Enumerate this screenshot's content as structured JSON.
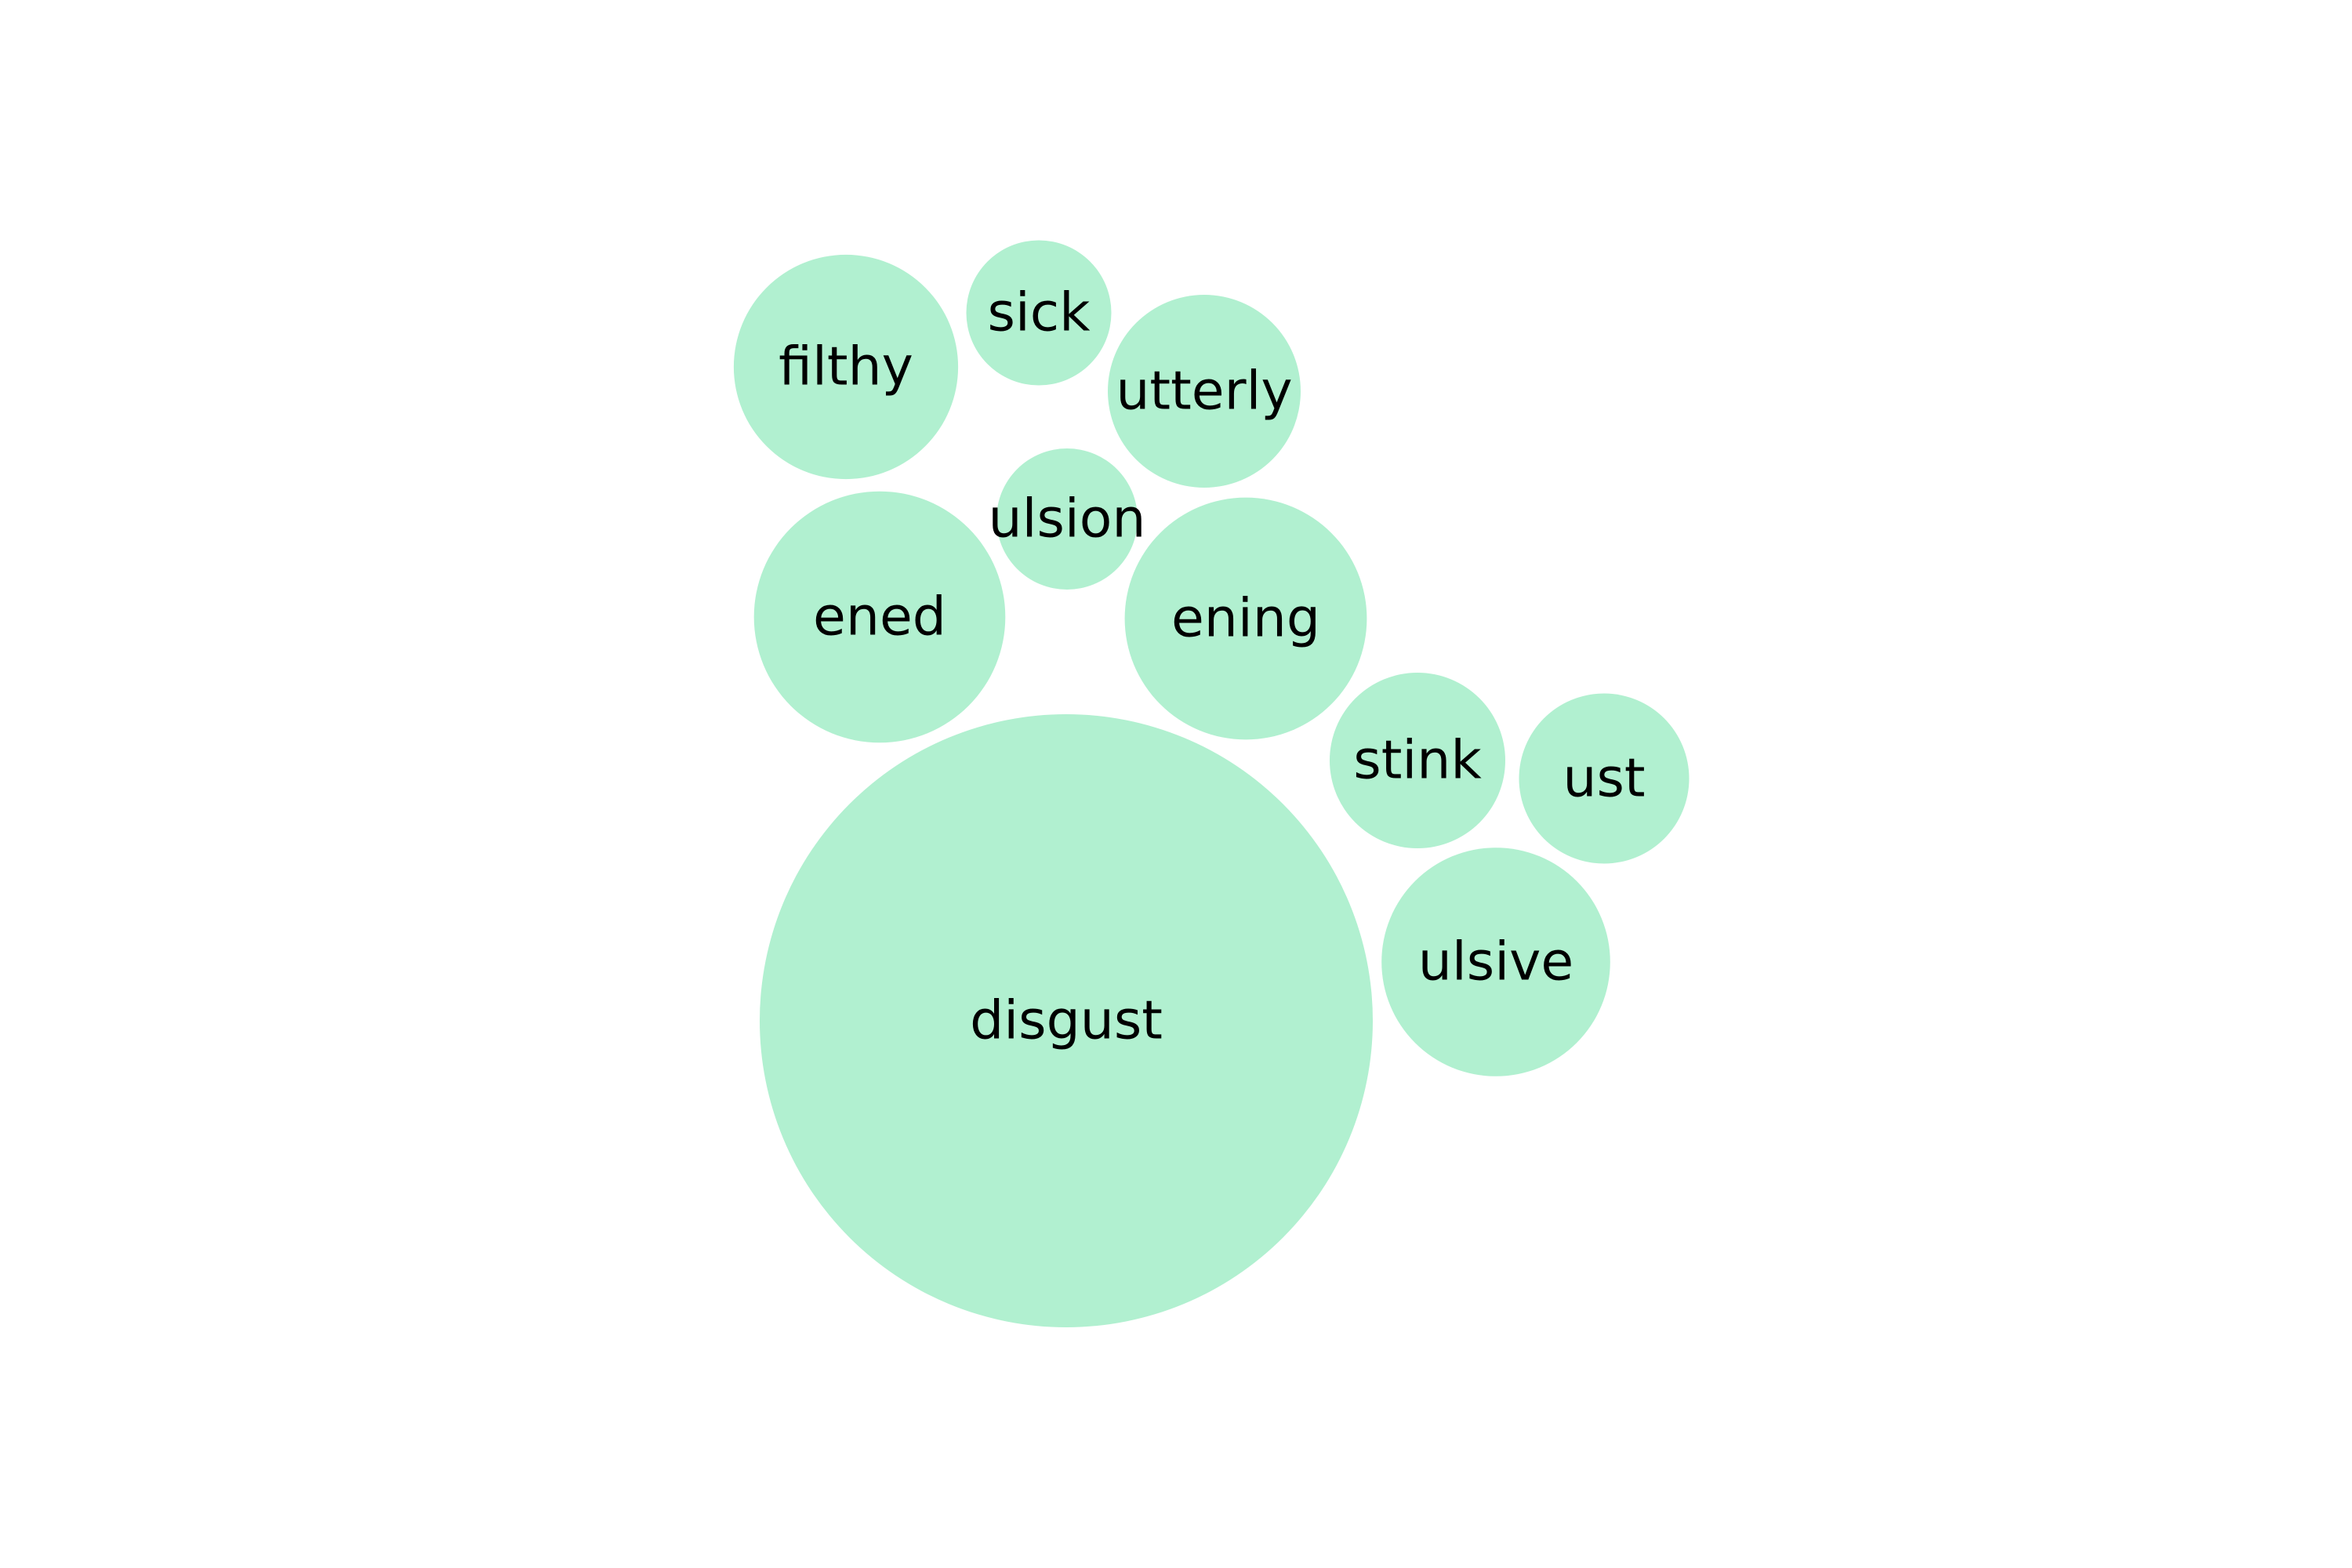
{
  "chart_data": {
    "type": "bubble",
    "bubble_color": "#b1f0d0",
    "label_color": "#000000",
    "bubbles": [
      {
        "label": "disgust",
        "value": 100
      },
      {
        "label": "ening",
        "value": 15.6
      },
      {
        "label": "ened",
        "value": 16.8
      },
      {
        "label": "ulsive",
        "value": 13.9
      },
      {
        "label": "filthy",
        "value": 13.4
      },
      {
        "label": "utterly",
        "value": 9.9
      },
      {
        "label": "stink",
        "value": 8.2
      },
      {
        "label": "ust",
        "value": 7.7
      },
      {
        "label": "sick",
        "value": 5.6
      },
      {
        "label": "ulsion",
        "value": 5.3
      }
    ]
  }
}
